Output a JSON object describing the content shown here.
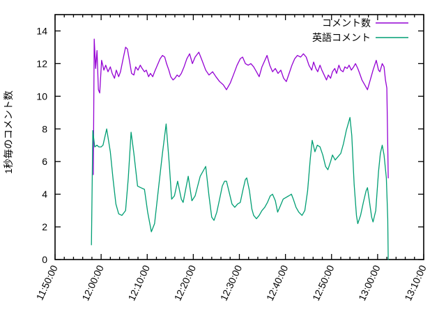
{
  "chart_data": {
    "type": "line",
    "title": "",
    "xlabel": "",
    "ylabel": "1秒毎のコメント数",
    "grid": false,
    "legend_position": "top-right-inside",
    "axis_color": "#000000",
    "background_color": "#ffffff",
    "x_axis": {
      "kind": "time",
      "range_minutes_from_start": [
        0,
        80
      ],
      "start_time": "11:50:00",
      "end_time": "13:10:00",
      "major_tick_every_minutes": 10,
      "minor_tick_every_minutes": 2,
      "tick_labels": [
        "11:50:00",
        "12:00:00",
        "12:10:00",
        "12:20:00",
        "12:30:00",
        "12:40:00",
        "12:50:00",
        "13:00:00",
        "13:10:00"
      ],
      "label_rotation_deg": -65
    },
    "y_axis": {
      "range": [
        0,
        15
      ],
      "tick_step": 2,
      "tick_labels": [
        "0",
        "2",
        "4",
        "6",
        "8",
        "10",
        "12",
        "14"
      ]
    },
    "series": [
      {
        "name": "コメント数",
        "color": "#9400D3",
        "points_minutes_value": [
          [
            8.3,
            5.2
          ],
          [
            8.5,
            13.5
          ],
          [
            8.8,
            11.7
          ],
          [
            9.1,
            12.8
          ],
          [
            9.4,
            10.4
          ],
          [
            9.7,
            10.2
          ],
          [
            10.1,
            12.2
          ],
          [
            10.6,
            11.6
          ],
          [
            11.0,
            11.9
          ],
          [
            11.5,
            11.5
          ],
          [
            12.0,
            11.8
          ],
          [
            12.4,
            11.4
          ],
          [
            12.9,
            11.1
          ],
          [
            13.3,
            11.6
          ],
          [
            13.8,
            11.2
          ],
          [
            14.2,
            11.5
          ],
          [
            14.7,
            12.2
          ],
          [
            15.3,
            13.0
          ],
          [
            15.7,
            12.9
          ],
          [
            16.2,
            12.1
          ],
          [
            16.6,
            11.4
          ],
          [
            17.1,
            11.3
          ],
          [
            17.5,
            11.8
          ],
          [
            18.0,
            11.6
          ],
          [
            18.5,
            11.9
          ],
          [
            18.9,
            11.7
          ],
          [
            19.4,
            11.5
          ],
          [
            19.8,
            11.6
          ],
          [
            20.3,
            11.2
          ],
          [
            20.7,
            11.4
          ],
          [
            21.2,
            11.2
          ],
          [
            21.6,
            11.5
          ],
          [
            22.2,
            11.9
          ],
          [
            22.8,
            12.3
          ],
          [
            23.3,
            12.5
          ],
          [
            23.8,
            12.4
          ],
          [
            24.2,
            12.0
          ],
          [
            24.7,
            11.6
          ],
          [
            25.1,
            11.2
          ],
          [
            25.6,
            11.0
          ],
          [
            26.0,
            11.1
          ],
          [
            26.5,
            11.3
          ],
          [
            26.9,
            11.2
          ],
          [
            27.4,
            11.4
          ],
          [
            28.0,
            11.8
          ],
          [
            28.6,
            12.3
          ],
          [
            29.2,
            12.6
          ],
          [
            29.8,
            12.0
          ],
          [
            30.4,
            12.4
          ],
          [
            31.2,
            12.7
          ],
          [
            31.9,
            12.2
          ],
          [
            32.7,
            11.6
          ],
          [
            33.4,
            11.3
          ],
          [
            34.2,
            11.5
          ],
          [
            34.9,
            11.2
          ],
          [
            35.7,
            10.9
          ],
          [
            36.5,
            10.7
          ],
          [
            37.2,
            10.4
          ],
          [
            38.0,
            10.8
          ],
          [
            38.7,
            11.3
          ],
          [
            39.5,
            11.9
          ],
          [
            40.2,
            12.3
          ],
          [
            40.7,
            12.4
          ],
          [
            41.3,
            12.0
          ],
          [
            41.9,
            11.9
          ],
          [
            42.5,
            12.0
          ],
          [
            43.1,
            11.8
          ],
          [
            43.7,
            11.5
          ],
          [
            44.3,
            11.2
          ],
          [
            44.9,
            11.8
          ],
          [
            46.0,
            12.5
          ],
          [
            46.6,
            11.9
          ],
          [
            47.2,
            11.5
          ],
          [
            47.8,
            11.7
          ],
          [
            48.4,
            11.4
          ],
          [
            49.0,
            11.6
          ],
          [
            49.6,
            11.1
          ],
          [
            50.2,
            10.9
          ],
          [
            50.8,
            11.4
          ],
          [
            51.4,
            11.9
          ],
          [
            52.0,
            12.3
          ],
          [
            52.6,
            12.5
          ],
          [
            53.3,
            12.4
          ],
          [
            53.9,
            12.6
          ],
          [
            54.5,
            12.4
          ],
          [
            55.1,
            11.9
          ],
          [
            55.7,
            11.6
          ],
          [
            56.1,
            12.1
          ],
          [
            56.6,
            11.7
          ],
          [
            57.0,
            11.5
          ],
          [
            57.5,
            11.9
          ],
          [
            57.9,
            11.6
          ],
          [
            58.4,
            11.3
          ],
          [
            58.9,
            11.0
          ],
          [
            59.3,
            11.3
          ],
          [
            59.8,
            11.1
          ],
          [
            60.2,
            11.5
          ],
          [
            60.7,
            11.7
          ],
          [
            61.1,
            11.4
          ],
          [
            61.6,
            11.9
          ],
          [
            62.0,
            11.6
          ],
          [
            62.5,
            11.5
          ],
          [
            62.9,
            11.8
          ],
          [
            63.4,
            11.7
          ],
          [
            63.8,
            11.9
          ],
          [
            64.3,
            11.6
          ],
          [
            64.8,
            11.8
          ],
          [
            65.2,
            12.0
          ],
          [
            65.7,
            11.7
          ],
          [
            66.1,
            11.4
          ],
          [
            66.6,
            11.0
          ],
          [
            67.2,
            10.7
          ],
          [
            67.8,
            10.4
          ],
          [
            68.4,
            11.0
          ],
          [
            69.0,
            11.6
          ],
          [
            69.7,
            12.2
          ],
          [
            70.2,
            11.6
          ],
          [
            70.5,
            11.5
          ],
          [
            71.0,
            12.0
          ],
          [
            71.4,
            11.8
          ],
          [
            71.7,
            11.0
          ],
          [
            72.0,
            10.5
          ],
          [
            72.2,
            7.0
          ],
          [
            72.3,
            5.0
          ]
        ]
      },
      {
        "name": "英語コメント",
        "color": "#009E73",
        "points_minutes_value": [
          [
            7.9,
            0.9
          ],
          [
            8.2,
            7.9
          ],
          [
            8.6,
            6.9
          ],
          [
            9.1,
            7.0
          ],
          [
            9.5,
            6.9
          ],
          [
            10.0,
            6.9
          ],
          [
            10.4,
            7.0
          ],
          [
            11.2,
            8.0
          ],
          [
            12.0,
            6.6
          ],
          [
            12.6,
            4.9
          ],
          [
            13.2,
            3.4
          ],
          [
            13.8,
            2.8
          ],
          [
            14.5,
            2.7
          ],
          [
            15.3,
            3.0
          ],
          [
            15.9,
            5.0
          ],
          [
            16.5,
            7.8
          ],
          [
            17.1,
            6.5
          ],
          [
            17.9,
            4.5
          ],
          [
            18.6,
            4.4
          ],
          [
            19.4,
            4.3
          ],
          [
            20.1,
            2.9
          ],
          [
            20.9,
            1.7
          ],
          [
            21.6,
            2.2
          ],
          [
            22.5,
            4.5
          ],
          [
            23.3,
            6.5
          ],
          [
            24.1,
            8.3
          ],
          [
            24.8,
            5.8
          ],
          [
            25.3,
            3.7
          ],
          [
            25.9,
            3.9
          ],
          [
            26.6,
            4.8
          ],
          [
            27.4,
            3.7
          ],
          [
            27.8,
            3.5
          ],
          [
            28.9,
            5.1
          ],
          [
            29.7,
            3.6
          ],
          [
            30.4,
            3.9
          ],
          [
            31.5,
            5.1
          ],
          [
            32.7,
            5.7
          ],
          [
            33.4,
            3.9
          ],
          [
            34.0,
            2.6
          ],
          [
            34.5,
            2.4
          ],
          [
            35.1,
            2.9
          ],
          [
            35.7,
            3.7
          ],
          [
            36.3,
            4.5
          ],
          [
            36.8,
            4.8
          ],
          [
            37.2,
            4.8
          ],
          [
            37.8,
            4.1
          ],
          [
            38.4,
            3.4
          ],
          [
            39.0,
            3.2
          ],
          [
            39.6,
            3.4
          ],
          [
            40.2,
            3.5
          ],
          [
            40.8,
            4.3
          ],
          [
            41.3,
            4.9
          ],
          [
            41.6,
            5.0
          ],
          [
            42.2,
            4.2
          ],
          [
            42.7,
            3.1
          ],
          [
            43.1,
            2.7
          ],
          [
            43.7,
            2.5
          ],
          [
            44.3,
            2.7
          ],
          [
            44.9,
            3.0
          ],
          [
            45.5,
            3.2
          ],
          [
            46.1,
            3.5
          ],
          [
            46.7,
            3.9
          ],
          [
            47.2,
            4.0
          ],
          [
            47.8,
            3.6
          ],
          [
            48.3,
            2.9
          ],
          [
            48.9,
            3.3
          ],
          [
            49.5,
            3.7
          ],
          [
            50.1,
            3.8
          ],
          [
            50.7,
            3.9
          ],
          [
            51.3,
            4.0
          ],
          [
            51.7,
            3.7
          ],
          [
            52.3,
            3.2
          ],
          [
            52.9,
            2.9
          ],
          [
            53.6,
            2.7
          ],
          [
            54.2,
            3.0
          ],
          [
            54.8,
            4.2
          ],
          [
            55.4,
            6.2
          ],
          [
            55.8,
            7.3
          ],
          [
            56.4,
            6.6
          ],
          [
            56.9,
            7.0
          ],
          [
            57.5,
            6.9
          ],
          [
            58.1,
            6.4
          ],
          [
            58.7,
            5.7
          ],
          [
            59.2,
            5.5
          ],
          [
            59.8,
            6.0
          ],
          [
            60.2,
            6.4
          ],
          [
            60.8,
            6.1
          ],
          [
            61.4,
            6.3
          ],
          [
            62.0,
            6.5
          ],
          [
            62.6,
            7.1
          ],
          [
            63.2,
            7.9
          ],
          [
            63.7,
            8.4
          ],
          [
            64.0,
            8.7
          ],
          [
            64.4,
            7.6
          ],
          [
            64.9,
            4.6
          ],
          [
            65.4,
            2.7
          ],
          [
            65.7,
            2.2
          ],
          [
            66.3,
            2.7
          ],
          [
            66.9,
            3.5
          ],
          [
            67.5,
            4.2
          ],
          [
            67.8,
            4.4
          ],
          [
            68.2,
            3.6
          ],
          [
            68.7,
            2.6
          ],
          [
            69.0,
            2.3
          ],
          [
            69.6,
            3.0
          ],
          [
            70.2,
            5.4
          ],
          [
            70.6,
            6.5
          ],
          [
            71.0,
            7.0
          ],
          [
            71.4,
            6.4
          ],
          [
            71.9,
            5.0
          ],
          [
            72.2,
            2.5
          ],
          [
            72.3,
            0.0
          ]
        ]
      }
    ]
  }
}
